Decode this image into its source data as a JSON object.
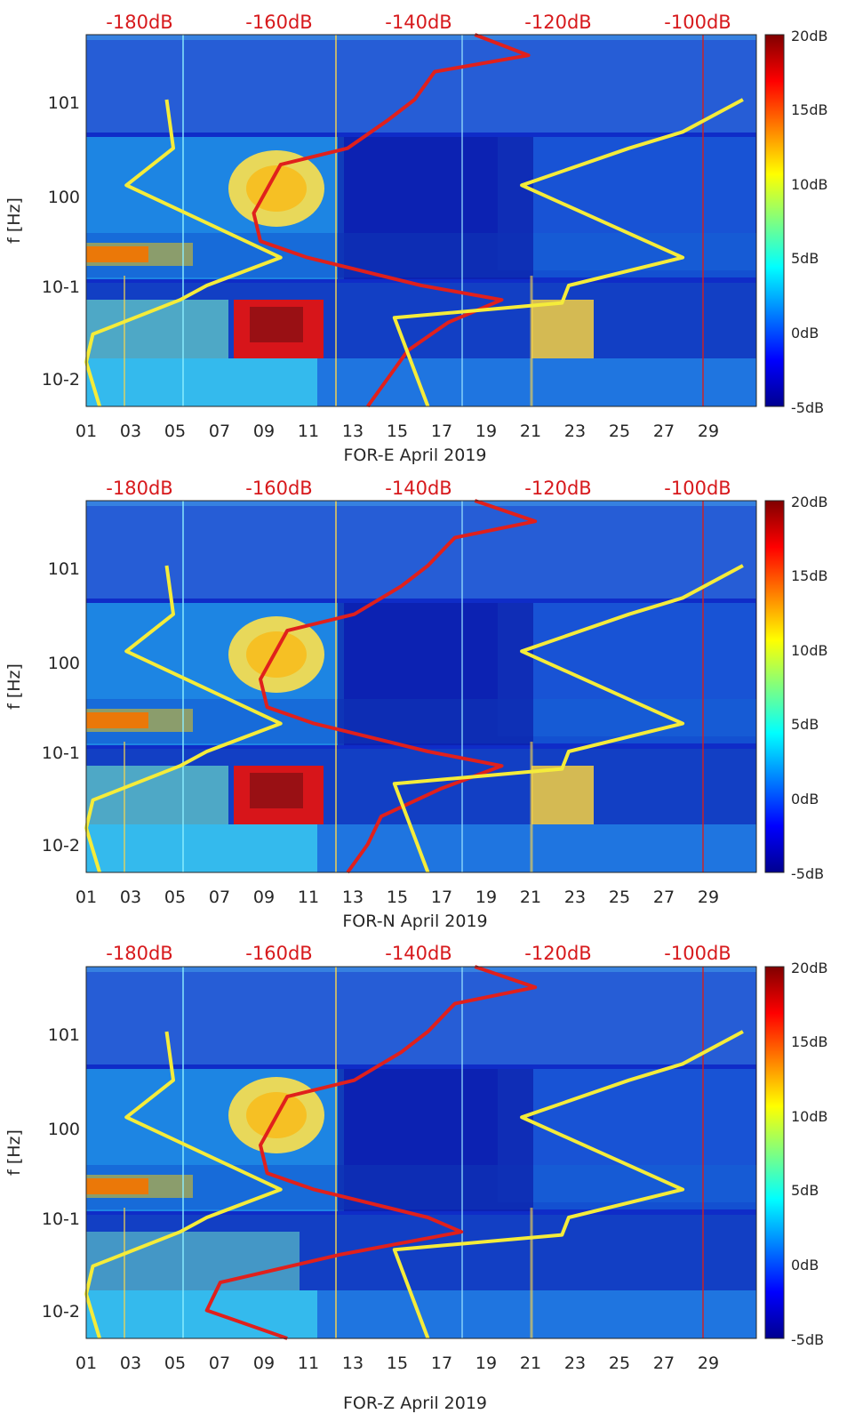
{
  "figure": {
    "colorbar_ticks": [
      "-5dB",
      "0dB",
      "5dB",
      "10dB",
      "15dB",
      "20dB"
    ],
    "colors": {
      "red_curve": "#e0201c",
      "yellow_curve": "#f5ec3a",
      "top_axis_text": "#d7191c"
    }
  },
  "chart_data": [
    {
      "type": "heatmap",
      "title": "",
      "xlabel": "FOR-E April 2019",
      "ylabel": "f [Hz]",
      "yscale": "log",
      "ylim": [
        0.005,
        50
      ],
      "xlim": [
        1,
        31
      ],
      "x_ticks": [
        "01",
        "03",
        "05",
        "07",
        "09",
        "11",
        "13",
        "15",
        "17",
        "19",
        "21",
        "23",
        "25",
        "27",
        "29"
      ],
      "y_ticks": [
        "10-2",
        "10-1",
        "100",
        "101"
      ],
      "top_axis_labels": [
        "-180dB",
        "-160dB",
        "-140dB",
        "-120dB",
        "-100dB"
      ],
      "top_axis_range": [
        -190,
        -90
      ],
      "colorbar_range": [
        -5,
        20
      ],
      "colorbar_ticks": [
        "-5dB",
        "0dB",
        "5dB",
        "10dB",
        "15dB",
        "20dB"
      ],
      "red_curve": {
        "x_db": [
          -132,
          -124,
          -138,
          -141,
          -145,
          -151,
          -161,
          -165,
          -164,
          -157,
          -140,
          -128,
          -136,
          -142,
          -145,
          -148
        ],
        "f_hz": [
          50,
          30,
          20,
          10,
          6,
          3,
          2,
          0.6,
          0.3,
          0.2,
          0.1,
          0.07,
          0.04,
          0.02,
          0.01,
          0.005
        ]
      },
      "yellow_curve_low": {
        "x_db": [
          -178,
          -177,
          -184,
          -161,
          -172,
          -176,
          -189,
          -190,
          -188
        ],
        "f_hz": [
          10,
          3,
          1.2,
          0.2,
          0.1,
          0.07,
          0.03,
          0.015,
          0.005
        ]
      },
      "yellow_curve_high": {
        "x_db": [
          -92,
          -101,
          -109,
          -125,
          -101,
          -118,
          -119,
          -144,
          -139
        ],
        "f_hz": [
          10,
          4.5,
          3,
          1.2,
          0.2,
          0.1,
          0.065,
          0.045,
          0.005
        ]
      }
    },
    {
      "type": "heatmap",
      "title": "",
      "xlabel": "FOR-N April 2019",
      "ylabel": "f [Hz]",
      "yscale": "log",
      "ylim": [
        0.005,
        50
      ],
      "xlim": [
        1,
        31
      ],
      "x_ticks": [
        "01",
        "03",
        "05",
        "07",
        "09",
        "11",
        "13",
        "15",
        "17",
        "19",
        "21",
        "23",
        "25",
        "27",
        "29"
      ],
      "y_ticks": [
        "10-2",
        "10-1",
        "100",
        "101"
      ],
      "top_axis_labels": [
        "-180dB",
        "-160dB",
        "-140dB",
        "-120dB",
        "-100dB"
      ],
      "top_axis_range": [
        -190,
        -90
      ],
      "colorbar_range": [
        -5,
        20
      ],
      "colorbar_ticks": [
        "-5dB",
        "0dB",
        "5dB",
        "10dB",
        "15dB",
        "20dB"
      ],
      "red_curve": {
        "x_db": [
          -132,
          -123,
          -135,
          -139,
          -143,
          -150,
          -160,
          -164,
          -163,
          -156,
          -139,
          -128,
          -137,
          -146,
          -148,
          -151
        ],
        "f_hz": [
          50,
          30,
          20,
          10,
          6,
          3,
          2,
          0.6,
          0.3,
          0.2,
          0.1,
          0.07,
          0.04,
          0.02,
          0.01,
          0.005
        ]
      },
      "yellow_curve_low": {
        "x_db": [
          -178,
          -177,
          -184,
          -161,
          -172,
          -176,
          -189,
          -190,
          -188
        ],
        "f_hz": [
          10,
          3,
          1.2,
          0.2,
          0.1,
          0.07,
          0.03,
          0.015,
          0.005
        ]
      },
      "yellow_curve_high": {
        "x_db": [
          -92,
          -101,
          -109,
          -125,
          -101,
          -118,
          -119,
          -144,
          -139
        ],
        "f_hz": [
          10,
          4.5,
          3,
          1.2,
          0.2,
          0.1,
          0.065,
          0.045,
          0.005
        ]
      }
    },
    {
      "type": "heatmap",
      "title": "",
      "xlabel": "FOR-Z April 2019",
      "ylabel": "f [Hz]",
      "yscale": "log",
      "ylim": [
        0.005,
        50
      ],
      "xlim": [
        1,
        31
      ],
      "x_ticks": [
        "01",
        "03",
        "05",
        "07",
        "09",
        "11",
        "13",
        "15",
        "17",
        "19",
        "21",
        "23",
        "25",
        "27",
        "29"
      ],
      "y_ticks": [
        "10-2",
        "10-1",
        "100",
        "101"
      ],
      "top_axis_labels": [
        "-180dB",
        "-160dB",
        "-140dB",
        "-120dB",
        "-100dB"
      ],
      "top_axis_range": [
        -190,
        -90
      ],
      "colorbar_range": [
        -5,
        20
      ],
      "colorbar_ticks": [
        "-5dB",
        "0dB",
        "5dB",
        "10dB",
        "15dB",
        "20dB"
      ],
      "red_curve": {
        "x_db": [
          -132,
          -123,
          -135,
          -139,
          -143,
          -150,
          -160,
          -164,
          -163,
          -156,
          -139,
          -134,
          -152,
          -170,
          -172,
          -160
        ],
        "f_hz": [
          50,
          30,
          20,
          10,
          6,
          3,
          2,
          0.6,
          0.3,
          0.2,
          0.1,
          0.07,
          0.04,
          0.02,
          0.01,
          0.005
        ]
      },
      "yellow_curve_low": {
        "x_db": [
          -178,
          -177,
          -184,
          -161,
          -172,
          -176,
          -189,
          -190,
          -188
        ],
        "f_hz": [
          10,
          3,
          1.2,
          0.2,
          0.1,
          0.07,
          0.03,
          0.015,
          0.005
        ]
      },
      "yellow_curve_high": {
        "x_db": [
          -92,
          -101,
          -109,
          -125,
          -101,
          -118,
          -119,
          -144,
          -139
        ],
        "f_hz": [
          10,
          4.5,
          3,
          1.2,
          0.2,
          0.1,
          0.065,
          0.045,
          0.005
        ]
      }
    }
  ]
}
